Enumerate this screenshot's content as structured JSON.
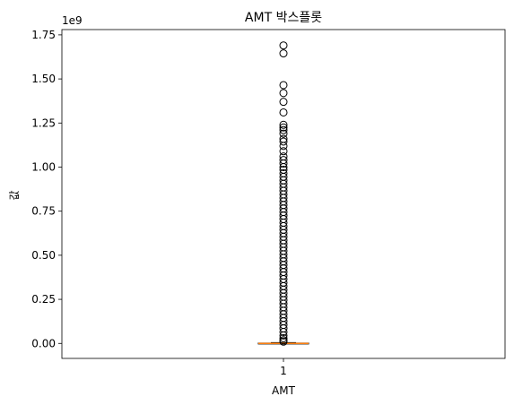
{
  "chart_data": {
    "type": "boxplot",
    "title": "AMT 박스플롯",
    "xlabel": "AMT",
    "ylabel": "값",
    "y_offset_text": "1e9",
    "y_scale_factor": 1000000000,
    "ylim": [
      -0.085,
      1.78
    ],
    "yticks": [
      0.0,
      0.25,
      0.5,
      0.75,
      1.0,
      1.25,
      1.5,
      1.75
    ],
    "ytick_labels": [
      "0.00",
      "0.25",
      "0.50",
      "0.75",
      "1.00",
      "1.25",
      "1.50",
      "1.75"
    ],
    "categories": [
      "1"
    ],
    "grid": false,
    "colors": {
      "median": "#ff7f0e",
      "box": "#000000",
      "flier": "#000000"
    },
    "box": {
      "whisker_low": 0.0,
      "q1": 0.0,
      "median": 0.0,
      "q3": 0.002,
      "whisker_high": 0.0045
    },
    "outliers": [
      1.69,
      1.645,
      1.465,
      1.42,
      1.37,
      1.31,
      1.24,
      1.225,
      1.21,
      1.19,
      1.16,
      1.145,
      1.12,
      1.09,
      1.06,
      1.04,
      1.02,
      1.0,
      0.985,
      0.965,
      0.945,
      0.925,
      0.905,
      0.885,
      0.865,
      0.845,
      0.825,
      0.805,
      0.785,
      0.765,
      0.745,
      0.725,
      0.705,
      0.685,
      0.665,
      0.645,
      0.625,
      0.605,
      0.585,
      0.565,
      0.545,
      0.525,
      0.505,
      0.485,
      0.465,
      0.445,
      0.425,
      0.405,
      0.385,
      0.365,
      0.345,
      0.325,
      0.305,
      0.285,
      0.265,
      0.245,
      0.225,
      0.205,
      0.185,
      0.165,
      0.145,
      0.125,
      0.105,
      0.085,
      0.065,
      0.045,
      0.03,
      0.018,
      0.01
    ]
  }
}
